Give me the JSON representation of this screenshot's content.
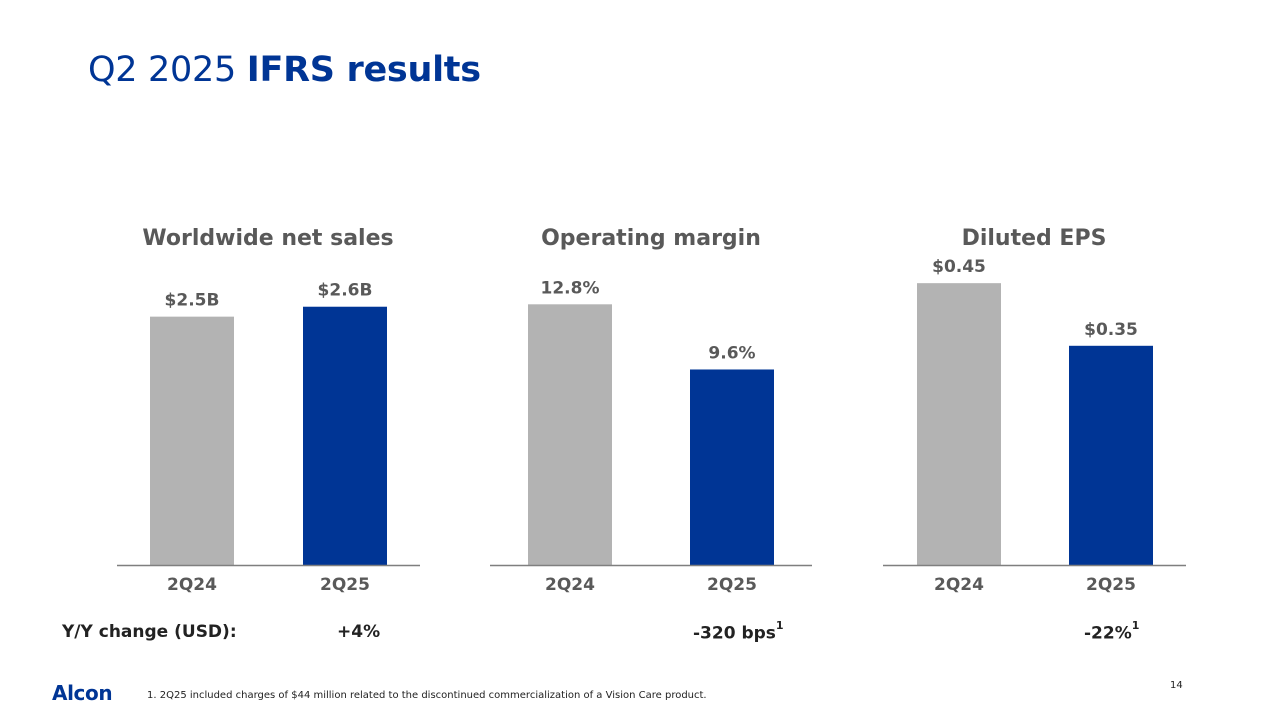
{
  "title": {
    "light": "Q2 2025",
    "bold": "IFRS results"
  },
  "colors": {
    "prior": "#b3b3b3",
    "current": "#003595",
    "text": "#595959",
    "axis": "#7f7f7f",
    "brand": "#003595"
  },
  "chart_data": [
    {
      "type": "bar",
      "title": "Worldwide net sales",
      "categories": [
        "2Q24",
        "2Q25"
      ],
      "values": [
        2.5,
        2.6
      ],
      "labels": [
        "$2.5B",
        "$2.6B"
      ],
      "unit": "USD billions",
      "ylim": [
        0,
        3.02
      ]
    },
    {
      "type": "bar",
      "title": "Operating margin",
      "categories": [
        "2Q24",
        "2Q25"
      ],
      "values": [
        12.8,
        9.6
      ],
      "labels": [
        "12.8%",
        "9.6%"
      ],
      "unit": "percent",
      "ylim": [
        0,
        14.73
      ]
    },
    {
      "type": "bar",
      "title": "Diluted EPS",
      "categories": [
        "2Q24",
        "2Q25"
      ],
      "values": [
        0.45,
        0.35
      ],
      "labels": [
        "$0.45",
        "$0.35"
      ],
      "unit": "USD",
      "ylim": [
        0,
        0.479
      ]
    }
  ],
  "yoy": {
    "label": "Y/Y change (USD):",
    "sales": "+4%",
    "margin": "-320 bps",
    "margin_note": "1",
    "eps": "-22%",
    "eps_note": "1"
  },
  "footer": {
    "brand": "Alcon",
    "footnote": "1. 2Q25 included charges of $44 million related to the discontinued commercialization of a Vision Care product.",
    "page": "14"
  }
}
